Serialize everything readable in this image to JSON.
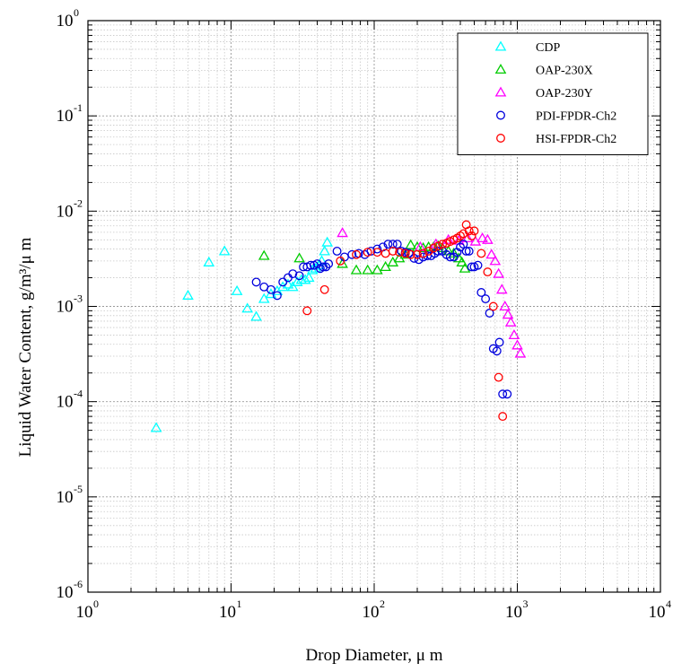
{
  "chart_data": {
    "type": "scatter",
    "xlabel": "Drop Diameter, μ m",
    "ylabel": "Liquid Water Content, g/m³/μ m",
    "x_scale": "log",
    "y_scale": "log",
    "xlim": [
      1,
      10000
    ],
    "ylim": [
      1e-06,
      1
    ],
    "grid": true,
    "legend_position": "top-right",
    "x_ticks": [
      {
        "base": "10",
        "exp": "0",
        "value": 1
      },
      {
        "base": "10",
        "exp": "1",
        "value": 10
      },
      {
        "base": "10",
        "exp": "2",
        "value": 100
      },
      {
        "base": "10",
        "exp": "3",
        "value": 1000
      },
      {
        "base": "10",
        "exp": "4",
        "value": 10000
      }
    ],
    "y_ticks": [
      {
        "base": "10",
        "exp": "-6",
        "value": 1e-06
      },
      {
        "base": "10",
        "exp": "-5",
        "value": 1e-05
      },
      {
        "base": "10",
        "exp": "-4",
        "value": 0.0001
      },
      {
        "base": "10",
        "exp": "-3",
        "value": 0.001
      },
      {
        "base": "10",
        "exp": "-2",
        "value": 0.01
      },
      {
        "base": "10",
        "exp": "-1",
        "value": 0.1
      },
      {
        "base": "10",
        "exp": "0",
        "value": 1
      }
    ],
    "series": [
      {
        "name": "CDP",
        "marker": "triangle",
        "color": "#00ffff",
        "x": [
          3,
          5,
          7,
          9,
          11,
          13,
          15,
          17,
          19,
          21,
          23,
          25,
          27,
          29,
          31,
          33,
          35,
          37,
          39,
          41,
          43,
          45,
          47
        ],
        "y": [
          5.3e-05,
          0.0013,
          0.0029,
          0.0038,
          0.00145,
          0.00095,
          0.00078,
          0.0012,
          0.00135,
          0.00145,
          0.0016,
          0.0017,
          0.0016,
          0.0018,
          0.0019,
          0.0019,
          0.002,
          0.0024,
          0.0025,
          0.0027,
          0.003,
          0.0038,
          0.0047
        ]
      },
      {
        "name": "OAP-230X",
        "marker": "triangle",
        "color": "#00cc00",
        "x": [
          17,
          30,
          60,
          75,
          90,
          105,
          120,
          135,
          150,
          165,
          180,
          200,
          220,
          240,
          260,
          280,
          300,
          330,
          360,
          390,
          410,
          430
        ],
        "y": [
          0.0034,
          0.0032,
          0.0028,
          0.0024,
          0.0024,
          0.0024,
          0.0026,
          0.0029,
          0.0032,
          0.0035,
          0.0044,
          0.0042,
          0.0041,
          0.0042,
          0.0042,
          0.0043,
          0.0041,
          0.0038,
          0.0036,
          0.0032,
          0.0029,
          0.0025
        ]
      },
      {
        "name": "OAP-230Y",
        "marker": "triangle",
        "color": "#ff00ff",
        "x": [
          60,
          210,
          270,
          330,
          390,
          450,
          510,
          570,
          620,
          660,
          700,
          740,
          780,
          820,
          860,
          900,
          950,
          1000,
          1050
        ],
        "y": [
          0.0059,
          0.0042,
          0.0045,
          0.005,
          0.0049,
          0.0052,
          0.0048,
          0.0052,
          0.005,
          0.0035,
          0.003,
          0.0022,
          0.0015,
          0.001,
          0.00082,
          0.00068,
          0.0005,
          0.00039,
          0.00032
        ]
      },
      {
        "name": "PDI-FPDR-Ch2",
        "marker": "circle",
        "color": "#0000dd",
        "x": [
          15,
          17,
          19,
          21,
          23,
          25,
          27,
          30,
          32,
          34,
          36,
          38,
          40,
          42,
          44,
          46,
          48,
          55,
          62,
          70,
          78,
          86,
          95,
          105,
          115,
          125,
          135,
          145,
          155,
          165,
          175,
          190,
          205,
          220,
          235,
          250,
          265,
          280,
          300,
          320,
          340,
          360,
          380,
          400,
          420,
          440,
          460,
          480,
          500,
          530,
          560,
          600,
          640,
          680,
          720,
          750,
          790,
          850
        ],
        "y": [
          0.0018,
          0.0016,
          0.0015,
          0.0013,
          0.0018,
          0.002,
          0.0022,
          0.0021,
          0.0026,
          0.0026,
          0.0027,
          0.0027,
          0.0028,
          0.0025,
          0.0026,
          0.0026,
          0.0028,
          0.0038,
          0.0033,
          0.0035,
          0.0036,
          0.0035,
          0.0038,
          0.004,
          0.0042,
          0.0045,
          0.0045,
          0.0045,
          0.0038,
          0.0037,
          0.0036,
          0.0032,
          0.0031,
          0.0033,
          0.0034,
          0.0034,
          0.0036,
          0.0038,
          0.0038,
          0.0035,
          0.0033,
          0.0033,
          0.0037,
          0.0042,
          0.0045,
          0.0038,
          0.0038,
          0.0026,
          0.0026,
          0.0027,
          0.0014,
          0.0012,
          0.00085,
          0.00036,
          0.00034,
          0.00042,
          0.00012,
          0.00012
        ]
      },
      {
        "name": "HSI-FPDR-Ch2",
        "marker": "circle",
        "color": "#ff0000",
        "x": [
          34,
          45,
          58,
          75,
          90,
          105,
          120,
          135,
          150,
          165,
          180,
          200,
          220,
          240,
          260,
          280,
          300,
          320,
          340,
          360,
          380,
          400,
          420,
          440,
          460,
          480,
          500,
          560,
          620,
          680,
          740,
          790
        ],
        "y": [
          0.0009,
          0.0015,
          0.003,
          0.0035,
          0.0037,
          0.0037,
          0.0036,
          0.0038,
          0.0037,
          0.0036,
          0.0035,
          0.0035,
          0.0036,
          0.0038,
          0.0041,
          0.0043,
          0.0045,
          0.0046,
          0.0048,
          0.005,
          0.0052,
          0.0055,
          0.0058,
          0.0072,
          0.0062,
          0.0055,
          0.0062,
          0.0036,
          0.0023,
          0.001,
          0.00018,
          7e-05
        ]
      }
    ]
  }
}
